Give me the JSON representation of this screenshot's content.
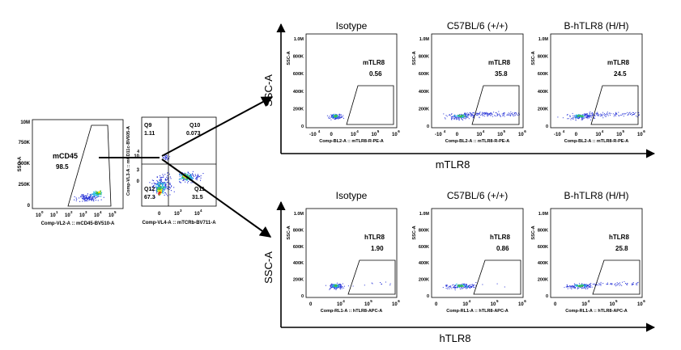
{
  "gating": {
    "cd45_plot": {
      "gate_name": "mCD45",
      "gate_value": "98.5",
      "x_axis_label": "Comp-VL2-A :: mCD45-BV510-A",
      "y_axis_label": "SSC-A",
      "y_ticks": [
        "10M",
        "750K",
        "500K",
        "250K",
        "0"
      ],
      "x_ticks": [
        "10",
        "10",
        "10",
        "10",
        "10",
        "10"
      ],
      "x_exponents": [
        "0",
        "1",
        "2",
        "3",
        "4",
        "5"
      ]
    },
    "quad_plot": {
      "x_axis_label": "Comp-VL4-A :: mTCRb-BV711-A",
      "y_axis_label": "Comp-VL3-A :: mCD11c-BV605-A",
      "quadrants": [
        {
          "name": "Q9",
          "value": "1.11"
        },
        {
          "name": "Q10",
          "value": "0.073"
        },
        {
          "name": "Q11",
          "value": "31.5"
        },
        {
          "name": "Q12",
          "value": "67.3"
        }
      ],
      "y_ticks": [
        "10",
        "4",
        "3",
        "0"
      ],
      "x_ticks": [
        "0",
        "10",
        "10"
      ],
      "x_exponents": [
        "",
        "3",
        "4"
      ]
    }
  },
  "rows": [
    {
      "group_label": "mTLR8",
      "y_axis_title": "SSC-A",
      "panels": [
        {
          "title": "Isotype",
          "gate_name": "mTLR8",
          "value": "0.56",
          "x_axis_label": "Comp-BL2-A :: mTLR8-R-PE-A"
        },
        {
          "title": "C57BL/6 (+/+)",
          "gate_name": "mTLR8",
          "value": "35.8",
          "x_axis_label": "Comp-BL2-A :: mTLR8-R-PE-A"
        },
        {
          "title": "B-hTLR8  (H/H)",
          "gate_name": "mTLR8",
          "value": "24.5",
          "x_axis_label": "Comp-BL2-A :: mTLR8-R-PE-A"
        }
      ]
    },
    {
      "group_label": "hTLR8",
      "y_axis_title": "SSC-A",
      "panels": [
        {
          "title": "Isotype",
          "gate_name": "hTLR8",
          "value": "1.90",
          "x_axis_label": "Comp-RL1-A :: hTLR8-APC-A"
        },
        {
          "title": "C57BL/6 (+/+)",
          "gate_name": "hTLR8",
          "value": "0.86",
          "x_axis_label": "Comp-RL1-A :: hTLR8-APC-A"
        },
        {
          "title": "B-hTLR8  (H/H)",
          "gate_name": "hTLR8",
          "value": "25.8",
          "x_axis_label": "Comp-RL1-A :: hTLR8-APC-A"
        }
      ]
    }
  ],
  "panel_axes": {
    "y_ticks": [
      "1.0M",
      "800K",
      "600K",
      "400K",
      "200K",
      "0"
    ],
    "y_axis_label": "SSC-A",
    "x_ticks_top": [
      "-10",
      "0",
      "10",
      "10",
      "10"
    ],
    "x_exponents_top": [
      "4",
      "",
      "4",
      "5",
      "6"
    ],
    "x_ticks_bottom": [
      "0",
      "10",
      "10",
      "10"
    ],
    "x_exponents_bottom": [
      "",
      "4",
      "5",
      "6"
    ]
  },
  "colors": {
    "dot_blue": "#2a36d8",
    "dot_cyan": "#22b8e0",
    "dot_green": "#3fbf3f",
    "dot_yellow": "#f4e21a",
    "dot_red": "#e8261e",
    "line": "#000000"
  }
}
